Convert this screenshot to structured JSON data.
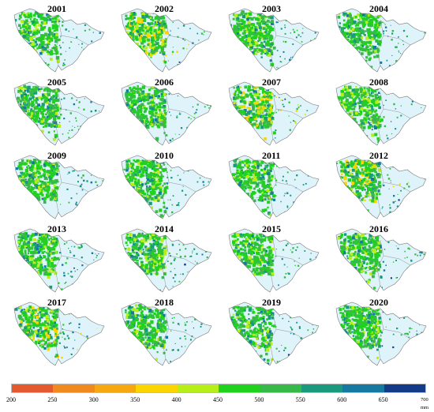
{
  "maps": [
    {
      "year": "2001"
    },
    {
      "year": "2002"
    },
    {
      "year": "2003"
    },
    {
      "year": "2004"
    },
    {
      "year": "2005"
    },
    {
      "year": "2006"
    },
    {
      "year": "2007"
    },
    {
      "year": "2008"
    },
    {
      "year": "2009"
    },
    {
      "year": "2010"
    },
    {
      "year": "2011"
    },
    {
      "year": "2012"
    },
    {
      "year": "2013"
    },
    {
      "year": "2014"
    },
    {
      "year": "2015"
    },
    {
      "year": "2016"
    },
    {
      "year": "2017"
    },
    {
      "year": "2018"
    },
    {
      "year": "2019"
    },
    {
      "year": "2020"
    }
  ],
  "legend": {
    "ticks": [
      "200",
      "250",
      "300",
      "350",
      "400",
      "450",
      "500",
      "550",
      "600",
      "650"
    ],
    "last_tick": "700",
    "unit": "mm",
    "colors": [
      "#e25a2d",
      "#f08a1f",
      "#f5a80f",
      "#fad500",
      "#b6ee1a",
      "#20d21e",
      "#37b94a",
      "#1a9a7c",
      "#167aa0",
      "#143b88"
    ]
  },
  "colors": {
    "boundary": "#7a7a7a",
    "lowland": "#dff3fa"
  }
}
